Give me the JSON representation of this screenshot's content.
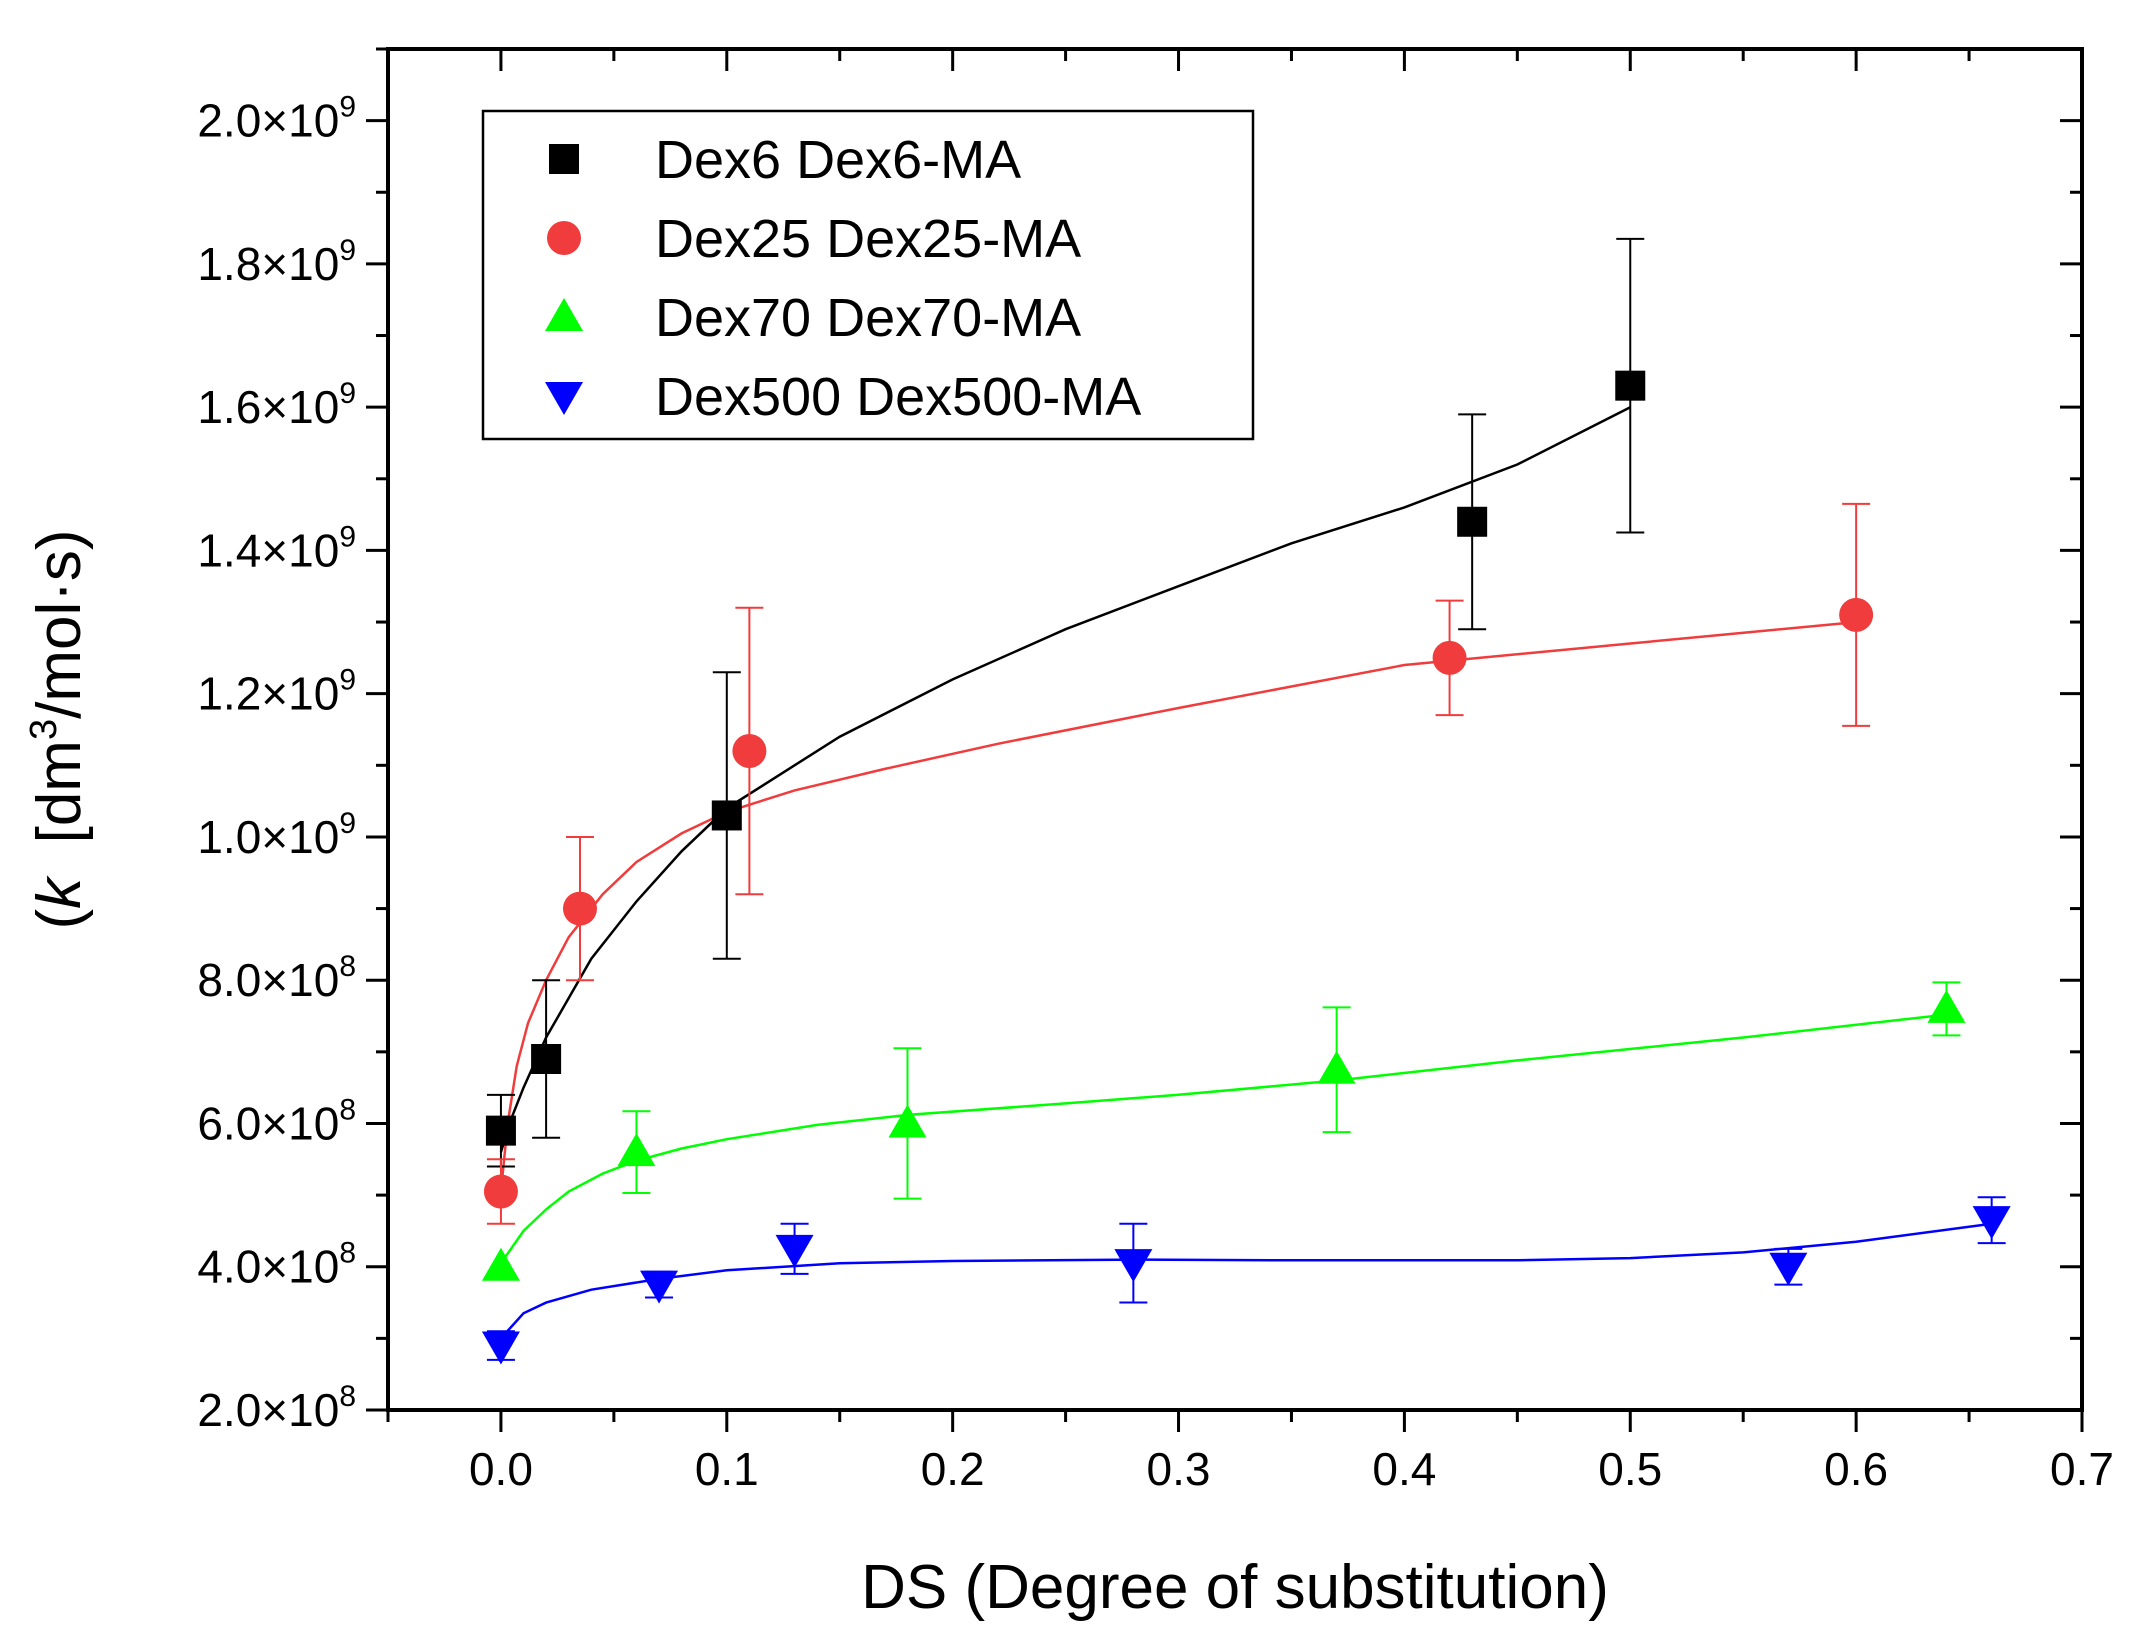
{
  "chart_data": {
    "type": "scatter",
    "xlabel": "DS  (Degree of substitution)",
    "ylabel_prefix": "(",
    "ylabel_k": "k",
    "ylabel_unit_start": "[dm",
    "ylabel_unit_sup": "3",
    "ylabel_unit_end": "/mol·s)",
    "xlim": [
      -0.05,
      0.7
    ],
    "ylim": [
      200000000,
      2100000000
    ],
    "x_ticks": [
      0.0,
      0.1,
      0.2,
      0.3,
      0.4,
      0.5,
      0.6,
      0.7
    ],
    "x_tick_labels": [
      "0.0",
      "0.1",
      "0.2",
      "0.3",
      "0.4",
      "0.5",
      "0.6",
      "0.7"
    ],
    "y_ticks": [
      200000000,
      400000000,
      600000000,
      800000000,
      1000000000,
      1200000000,
      1400000000,
      1600000000,
      1800000000,
      2000000000
    ],
    "y_tick_mantissas": [
      "2.0×10",
      "4.0×10",
      "6.0×10",
      "8.0×10",
      "1.0×10",
      "1.2×10",
      "1.4×10",
      "1.6×10",
      "1.8×10",
      "2.0×10"
    ],
    "y_tick_exponents": [
      "8",
      "8",
      "8",
      "8",
      "9",
      "9",
      "9",
      "9",
      "9",
      "9"
    ],
    "legend_position": "top-left",
    "grid": false,
    "series": [
      {
        "name": "Dex6 Dex6-MA",
        "marker": "square",
        "color": "#000000",
        "x": [
          0.0,
          0.02,
          0.1,
          0.43,
          0.5
        ],
        "y": [
          590000000,
          690000000,
          1030000000,
          1440000000,
          1630000000
        ],
        "err": [
          50000000,
          110000000,
          200000000,
          150000000,
          205000000
        ],
        "fit_x": [
          0.0,
          0.005,
          0.01,
          0.02,
          0.04,
          0.06,
          0.08,
          0.1,
          0.15,
          0.2,
          0.25,
          0.3,
          0.35,
          0.4,
          0.45,
          0.5
        ],
        "fit_y": [
          560000000,
          610000000,
          650000000,
          720000000,
          830000000,
          910000000,
          980000000,
          1040000000,
          1140000000,
          1220000000,
          1290000000,
          1350000000,
          1410000000,
          1460000000,
          1520000000,
          1600000000
        ]
      },
      {
        "name": "Dex25 Dex25-MA",
        "marker": "circle",
        "color": "#f03c3c",
        "x": [
          0.0,
          0.035,
          0.11,
          0.42,
          0.6
        ],
        "y": [
          505000000,
          900000000,
          1120000000,
          1250000000,
          1310000000
        ],
        "err": [
          45000000,
          100000000,
          200000000,
          80000000,
          155000000
        ],
        "fit_x": [
          0.0,
          0.003,
          0.007,
          0.012,
          0.02,
          0.03,
          0.045,
          0.06,
          0.08,
          0.1,
          0.13,
          0.17,
          0.22,
          0.3,
          0.4,
          0.5,
          0.6
        ],
        "fit_y": [
          505000000,
          600000000,
          680000000,
          740000000,
          800000000,
          860000000,
          920000000,
          965000000,
          1005000000,
          1035000000,
          1065000000,
          1095000000,
          1130000000,
          1180000000,
          1240000000,
          1270000000,
          1300000000
        ]
      },
      {
        "name": "Dex70 Dex70-MA",
        "marker": "triangle-up",
        "color": "#00ff00",
        "x": [
          0.0,
          0.06,
          0.18,
          0.37,
          0.64
        ],
        "y": [
          400000000,
          560000000,
          600000000,
          675000000,
          760000000
        ],
        "err": [
          0,
          57000000,
          105000000,
          87000000,
          37000000
        ],
        "fit_x": [
          0.0,
          0.01,
          0.02,
          0.03,
          0.045,
          0.06,
          0.08,
          0.1,
          0.14,
          0.18,
          0.25,
          0.3,
          0.37,
          0.45,
          0.55,
          0.64
        ],
        "fit_y": [
          405000000,
          450000000,
          480000000,
          505000000,
          530000000,
          548000000,
          565000000,
          578000000,
          598000000,
          612000000,
          628000000,
          640000000,
          660000000,
          688000000,
          720000000,
          752000000
        ]
      },
      {
        "name": "Dex500 Dex500-MA",
        "marker": "triangle-down",
        "color": "#0000ff",
        "x": [
          0.0,
          0.07,
          0.13,
          0.28,
          0.57,
          0.66
        ],
        "y": [
          290000000,
          375000000,
          425000000,
          405000000,
          400000000,
          465000000
        ],
        "err": [
          20000000,
          18000000,
          35000000,
          55000000,
          25000000,
          32000000
        ],
        "fit_x": [
          0.0,
          0.01,
          0.02,
          0.04,
          0.07,
          0.1,
          0.15,
          0.2,
          0.28,
          0.35,
          0.45,
          0.5,
          0.55,
          0.6,
          0.66
        ],
        "fit_y": [
          300000000,
          335000000,
          350000000,
          368000000,
          383000000,
          395000000,
          405000000,
          408000000,
          410000000,
          409000000,
          409000000,
          412000000,
          420000000,
          435000000,
          460000000
        ]
      }
    ]
  }
}
